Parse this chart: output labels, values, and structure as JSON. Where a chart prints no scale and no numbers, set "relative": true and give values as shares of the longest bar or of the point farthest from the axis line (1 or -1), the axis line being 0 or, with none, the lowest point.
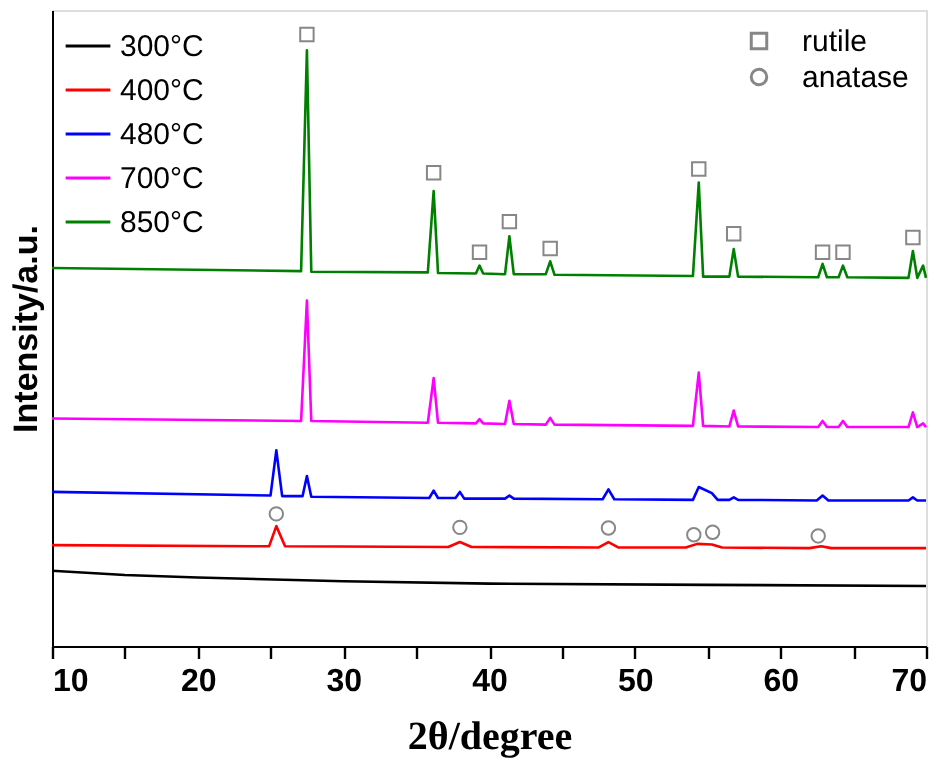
{
  "chart_data": {
    "type": "line",
    "relative": true,
    "xlabel": "2θ/degree",
    "ylabel": "Intensity/a.u.",
    "xlim": [
      10,
      70
    ],
    "xticks": [
      10,
      {
        "value": 15,
        "label": null
      },
      20,
      {
        "value": 25,
        "label": null
      },
      30,
      {
        "value": 35,
        "label": null
      },
      40,
      {
        "value": 45,
        "label": null
      },
      50,
      {
        "value": 55,
        "label": null
      },
      60,
      {
        "value": 65,
        "label": null
      },
      70
    ],
    "grid": false,
    "legend": "top left",
    "marker": "none",
    "line_style": "solid",
    "series": [
      {
        "name": "300°C",
        "color": "#000000",
        "x": [
          10,
          15,
          20,
          30,
          40,
          55,
          70
        ],
        "values": [
          0.123,
          0.116,
          0.112,
          0.106,
          0.102,
          0.1,
          0.098
        ]
      },
      {
        "name": "400°C",
        "color": "#ff0000",
        "x": [
          10,
          24.9,
          25.4,
          26.0,
          37.2,
          38.0,
          38.8,
          47.5,
          48.2,
          48.9,
          53.5,
          54.3,
          55.3,
          56.0,
          62.0,
          62.8,
          63.5,
          70
        ],
        "values": [
          0.165,
          0.163,
          0.196,
          0.163,
          0.162,
          0.17,
          0.162,
          0.161,
          0.17,
          0.161,
          0.161,
          0.167,
          0.166,
          0.161,
          0.16,
          0.163,
          0.16,
          0.16
        ]
      },
      {
        "name": "480°C",
        "color": "#0000ff",
        "x": [
          10,
          25.0,
          25.4,
          25.8,
          27.2,
          27.5,
          27.8,
          35.9,
          36.2,
          36.5,
          37.7,
          38.0,
          38.3,
          41.1,
          41.4,
          41.7,
          47.8,
          48.2,
          48.6,
          54.0,
          54.4,
          55.3,
          55.7,
          56.5,
          56.8,
          57.1,
          62.5,
          62.9,
          63.3,
          68.8,
          69.1,
          69.4,
          70
        ],
        "values": [
          0.252,
          0.246,
          0.32,
          0.245,
          0.245,
          0.278,
          0.244,
          0.242,
          0.254,
          0.242,
          0.242,
          0.252,
          0.241,
          0.241,
          0.246,
          0.241,
          0.24,
          0.256,
          0.24,
          0.239,
          0.26,
          0.25,
          0.239,
          0.239,
          0.243,
          0.239,
          0.238,
          0.246,
          0.238,
          0.238,
          0.243,
          0.238,
          0.238
        ]
      },
      {
        "name": "700°C",
        "color": "#ff00ff",
        "x": [
          10,
          27.1,
          27.5,
          27.8,
          35.8,
          36.2,
          36.5,
          39.1,
          39.35,
          39.6,
          41.1,
          41.4,
          41.7,
          43.9,
          44.2,
          44.5,
          54.0,
          54.4,
          54.7,
          56.5,
          56.8,
          57.1,
          62.6,
          62.9,
          63.2,
          64.0,
          64.3,
          64.6,
          68.8,
          69.1,
          69.4,
          69.8,
          70
        ],
        "values": [
          0.372,
          0.368,
          0.565,
          0.368,
          0.365,
          0.438,
          0.365,
          0.364,
          0.371,
          0.364,
          0.363,
          0.401,
          0.363,
          0.362,
          0.373,
          0.362,
          0.36,
          0.447,
          0.36,
          0.359,
          0.385,
          0.359,
          0.358,
          0.368,
          0.358,
          0.358,
          0.368,
          0.358,
          0.358,
          0.382,
          0.358,
          0.364,
          0.358
        ]
      },
      {
        "name": "850°C",
        "color": "#008000",
        "x": [
          10,
          27.1,
          27.5,
          27.8,
          35.8,
          36.2,
          36.5,
          39.1,
          39.35,
          39.6,
          41.1,
          41.4,
          41.7,
          43.9,
          44.2,
          44.5,
          54.0,
          54.4,
          54.7,
          56.5,
          56.8,
          57.1,
          62.6,
          62.9,
          63.2,
          64.0,
          64.3,
          64.6,
          68.8,
          69.1,
          69.4,
          69.8,
          70
        ],
        "values": [
          0.618,
          0.613,
          0.974,
          0.612,
          0.611,
          0.744,
          0.61,
          0.609,
          0.622,
          0.609,
          0.608,
          0.67,
          0.608,
          0.608,
          0.629,
          0.607,
          0.605,
          0.758,
          0.604,
          0.604,
          0.649,
          0.604,
          0.603,
          0.625,
          0.603,
          0.603,
          0.622,
          0.603,
          0.602,
          0.646,
          0.602,
          0.622,
          0.602
        ]
      },
      {
        "name": "rutile",
        "type": "scatter",
        "marker": "square",
        "color": "#555555",
        "x": [
          27.5,
          36.2,
          39.35,
          41.4,
          44.2,
          54.4,
          56.8,
          62.9,
          64.3,
          69.1
        ],
        "values": [
          1.0,
          0.774,
          0.644,
          0.694,
          0.65,
          0.78,
          0.674,
          0.644,
          0.644,
          0.668
        ]
      },
      {
        "name": "anatase",
        "type": "scatter",
        "marker": "circle",
        "color": "#555555",
        "x": [
          25.4,
          38.0,
          48.2,
          54.06,
          55.35,
          62.6
        ],
        "values": [
          0.216,
          0.194,
          0.193,
          0.182,
          0.186,
          0.18
        ]
      }
    ]
  }
}
